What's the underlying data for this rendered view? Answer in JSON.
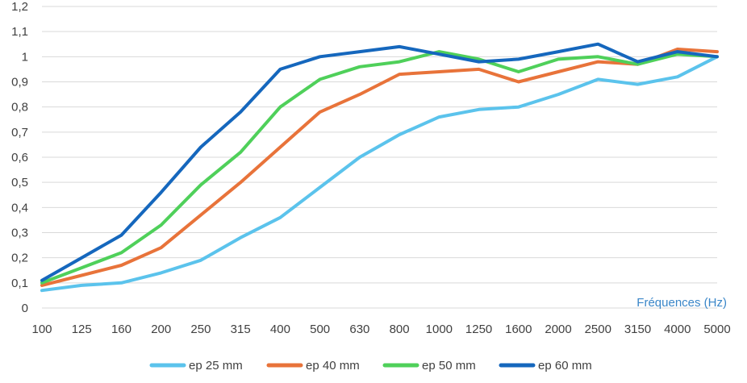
{
  "chart_data": {
    "type": "line",
    "title": "",
    "xlabel": "Fréquences (Hz)",
    "ylabel": "",
    "ylim": [
      0,
      1.2
    ],
    "yticks": [
      "0",
      "0,1",
      "0,2",
      "0,3",
      "0,4",
      "0,5",
      "0,6",
      "0,7",
      "0,8",
      "0,9",
      "1",
      "1,1",
      "1,2"
    ],
    "grid": true,
    "legend_position": "bottom",
    "categories": [
      "100",
      "125",
      "160",
      "200",
      "250",
      "315",
      "400",
      "500",
      "630",
      "800",
      "1000",
      "1250",
      "1600",
      "2000",
      "2500",
      "3150",
      "4000",
      "5000"
    ],
    "series": [
      {
        "name": "ep 25 mm",
        "color": "#5bc3ec",
        "values": [
          0.07,
          0.09,
          0.1,
          0.14,
          0.19,
          0.28,
          0.36,
          0.48,
          0.6,
          0.69,
          0.76,
          0.79,
          0.8,
          0.85,
          0.91,
          0.89,
          0.92,
          1.0
        ]
      },
      {
        "name": "ep 40 mm",
        "color": "#e8733a",
        "values": [
          0.09,
          0.13,
          0.17,
          0.24,
          0.37,
          0.5,
          0.64,
          0.78,
          0.85,
          0.93,
          0.94,
          0.95,
          0.9,
          0.94,
          0.98,
          0.97,
          1.03,
          1.02
        ]
      },
      {
        "name": "ep 50 mm",
        "color": "#4fd05a",
        "values": [
          0.1,
          0.16,
          0.22,
          0.33,
          0.49,
          0.62,
          0.8,
          0.91,
          0.96,
          0.98,
          1.02,
          0.99,
          0.94,
          0.99,
          1.0,
          0.97,
          1.01,
          1.0
        ]
      },
      {
        "name": "ep 60 mm",
        "color": "#1567bd",
        "values": [
          0.11,
          0.2,
          0.29,
          0.46,
          0.64,
          0.78,
          0.95,
          1.0,
          1.02,
          1.04,
          1.01,
          0.98,
          0.99,
          1.02,
          1.05,
          0.98,
          1.02,
          1.0
        ]
      }
    ]
  }
}
